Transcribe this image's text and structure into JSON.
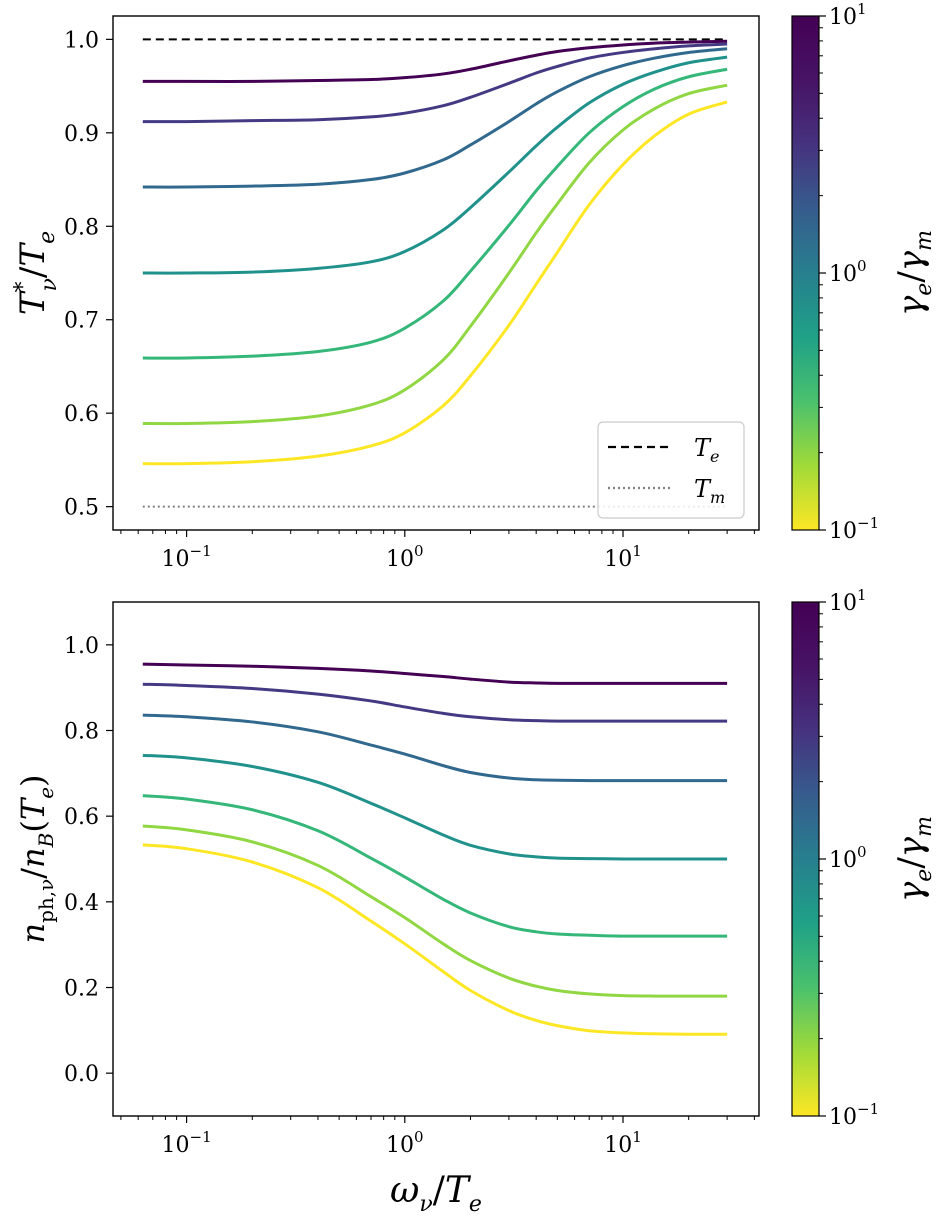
{
  "chart_data": [
    {
      "type": "line",
      "ylabel": "T*_ν / T_e",
      "xlabel": "",
      "xscale": "log",
      "xlim": [
        0.046,
        42
      ],
      "ylim": [
        0.475,
        1.025
      ],
      "x_ticks": [
        0.1,
        1,
        10
      ],
      "x_tick_labels": [
        {
          "base": "10",
          "exp": "−1"
        },
        {
          "base": "10",
          "exp": "0"
        },
        {
          "base": "10",
          "exp": "1"
        }
      ],
      "y_ticks": [
        0.5,
        0.6,
        0.7,
        0.8,
        0.9,
        1.0
      ],
      "y_tick_labels": [
        "0.5",
        "0.6",
        "0.7",
        "0.8",
        "0.9",
        "1.0"
      ],
      "reference_lines": [
        {
          "name": "T_e",
          "label_main": "T",
          "label_sub": "e",
          "y": 1.0,
          "style": "dashed",
          "color": "#000000"
        },
        {
          "name": "T_m",
          "label_main": "T",
          "label_sub": "m",
          "y": 0.5,
          "style": "dotted",
          "color": "#808080"
        }
      ],
      "legend_position": "lower-right",
      "x": [
        0.063,
        0.1,
        0.2,
        0.4,
        0.7,
        1.0,
        1.5,
        2,
        3,
        4,
        5,
        7,
        10,
        14,
        20,
        30
      ],
      "series": [
        {
          "name": "γe/γm = 10",
          "color": "#440154",
          "values": [
            0.955,
            0.955,
            0.955,
            0.956,
            0.957,
            0.959,
            0.963,
            0.968,
            0.977,
            0.983,
            0.987,
            0.991,
            0.994,
            0.996,
            0.997,
            0.998
          ]
        },
        {
          "name": "γe/γm = 4.6",
          "color": "#443a83",
          "values": [
            0.912,
            0.912,
            0.913,
            0.914,
            0.917,
            0.921,
            0.929,
            0.938,
            0.953,
            0.964,
            0.971,
            0.98,
            0.986,
            0.99,
            0.993,
            0.995
          ]
        },
        {
          "name": "γe/γm = 2.15",
          "color": "#31688e",
          "values": [
            0.842,
            0.842,
            0.843,
            0.845,
            0.85,
            0.857,
            0.871,
            0.887,
            0.912,
            0.931,
            0.944,
            0.96,
            0.972,
            0.98,
            0.986,
            0.99
          ]
        },
        {
          "name": "γe/γm = 1.0",
          "color": "#21918c",
          "values": [
            0.75,
            0.75,
            0.751,
            0.755,
            0.762,
            0.773,
            0.796,
            0.82,
            0.858,
            0.886,
            0.906,
            0.932,
            0.952,
            0.965,
            0.975,
            0.981
          ]
        },
        {
          "name": "γe/γm = 0.46",
          "color": "#35b779",
          "values": [
            0.659,
            0.659,
            0.661,
            0.666,
            0.676,
            0.691,
            0.72,
            0.752,
            0.801,
            0.838,
            0.864,
            0.9,
            0.928,
            0.947,
            0.96,
            0.968
          ]
        },
        {
          "name": "γe/γm = 0.215",
          "color": "#90d743",
          "values": [
            0.589,
            0.589,
            0.591,
            0.597,
            0.609,
            0.625,
            0.657,
            0.693,
            0.75,
            0.793,
            0.824,
            0.868,
            0.903,
            0.926,
            0.942,
            0.951
          ]
        },
        {
          "name": "γe/γm = 0.1",
          "color": "#fde725",
          "values": [
            0.546,
            0.546,
            0.548,
            0.554,
            0.565,
            0.579,
            0.608,
            0.64,
            0.694,
            0.738,
            0.772,
            0.823,
            0.866,
            0.897,
            0.92,
            0.933
          ]
        }
      ],
      "colorbar": {
        "label": "γ_e/γ_m",
        "range": [
          0.1,
          10
        ],
        "scale": "log",
        "colormap": "viridis",
        "tick_labels": [
          {
            "base": "10",
            "exp": "1"
          },
          {
            "base": "10",
            "exp": "0"
          },
          {
            "base": "10",
            "exp": "−1"
          }
        ]
      }
    },
    {
      "type": "line",
      "ylabel": "n_ph,ν / n_B(T_e)",
      "xlabel": "ω_ν / T_e",
      "xscale": "log",
      "xlim": [
        0.046,
        42
      ],
      "ylim": [
        -0.1,
        1.1
      ],
      "x_ticks": [
        0.1,
        1,
        10
      ],
      "x_tick_labels": [
        {
          "base": "10",
          "exp": "−1"
        },
        {
          "base": "10",
          "exp": "0"
        },
        {
          "base": "10",
          "exp": "1"
        }
      ],
      "y_ticks": [
        0.0,
        0.2,
        0.4,
        0.6,
        0.8,
        1.0
      ],
      "y_tick_labels": [
        "0.0",
        "0.2",
        "0.4",
        "0.6",
        "0.8",
        "1.0"
      ],
      "x": [
        0.063,
        0.1,
        0.2,
        0.4,
        0.7,
        1.0,
        1.5,
        2,
        3,
        4,
        5,
        7,
        10,
        14,
        20,
        30
      ],
      "series": [
        {
          "name": "γe/γm = 10",
          "color": "#440154",
          "values": [
            0.955,
            0.953,
            0.95,
            0.945,
            0.939,
            0.933,
            0.926,
            0.92,
            0.913,
            0.911,
            0.91,
            0.91,
            0.91,
            0.91,
            0.91,
            0.91
          ]
        },
        {
          "name": "γe/γm = 4.6",
          "color": "#443a83",
          "values": [
            0.908,
            0.905,
            0.898,
            0.885,
            0.869,
            0.855,
            0.84,
            0.832,
            0.825,
            0.823,
            0.822,
            0.822,
            0.822,
            0.822,
            0.822,
            0.822
          ]
        },
        {
          "name": "γe/γm = 2.15",
          "color": "#31688e",
          "values": [
            0.836,
            0.832,
            0.82,
            0.797,
            0.766,
            0.745,
            0.718,
            0.702,
            0.689,
            0.685,
            0.684,
            0.683,
            0.683,
            0.683,
            0.683,
            0.683
          ]
        },
        {
          "name": "γe/γm = 1.0",
          "color": "#21918c",
          "values": [
            0.742,
            0.736,
            0.716,
            0.679,
            0.63,
            0.596,
            0.556,
            0.532,
            0.512,
            0.505,
            0.502,
            0.501,
            0.5,
            0.5,
            0.5,
            0.5
          ]
        },
        {
          "name": "γe/γm = 0.46",
          "color": "#35b779",
          "values": [
            0.648,
            0.64,
            0.615,
            0.566,
            0.502,
            0.458,
            0.406,
            0.374,
            0.342,
            0.33,
            0.325,
            0.322,
            0.32,
            0.32,
            0.32,
            0.32
          ]
        },
        {
          "name": "γe/γm = 0.215",
          "color": "#90d743",
          "values": [
            0.577,
            0.568,
            0.54,
            0.485,
            0.412,
            0.363,
            0.302,
            0.263,
            0.222,
            0.203,
            0.193,
            0.185,
            0.181,
            0.18,
            0.18,
            0.18
          ]
        },
        {
          "name": "γe/γm = 0.1",
          "color": "#fde725",
          "values": [
            0.533,
            0.524,
            0.493,
            0.433,
            0.355,
            0.302,
            0.237,
            0.193,
            0.146,
            0.123,
            0.111,
            0.099,
            0.094,
            0.092,
            0.091,
            0.091
          ]
        }
      ],
      "colorbar": {
        "label": "γ_e/γ_m",
        "range": [
          0.1,
          10
        ],
        "scale": "log",
        "colormap": "viridis",
        "tick_labels": [
          {
            "base": "10",
            "exp": "1"
          },
          {
            "base": "10",
            "exp": "0"
          },
          {
            "base": "10",
            "exp": "−1"
          }
        ]
      }
    }
  ],
  "labels": {
    "top_ylabel_main": "T",
    "top_ylabel_sup": "*",
    "top_ylabel_sub": "ν",
    "top_ylabel_den": "T",
    "top_ylabel_den_sub": "e",
    "bottom_ylabel_main": "n",
    "bottom_ylabel_sub": "ph,ν",
    "bottom_ylabel_den": "n",
    "bottom_ylabel_den_sub": "B",
    "bottom_ylabel_arg": "T",
    "bottom_ylabel_arg_sub": "e",
    "xlabel_main": "ω",
    "xlabel_sub": "ν",
    "xlabel_den": "T",
    "xlabel_den_sub": "e",
    "cbar_num": "γ",
    "cbar_num_sub": "e",
    "cbar_den": "γ",
    "cbar_den_sub": "m"
  }
}
